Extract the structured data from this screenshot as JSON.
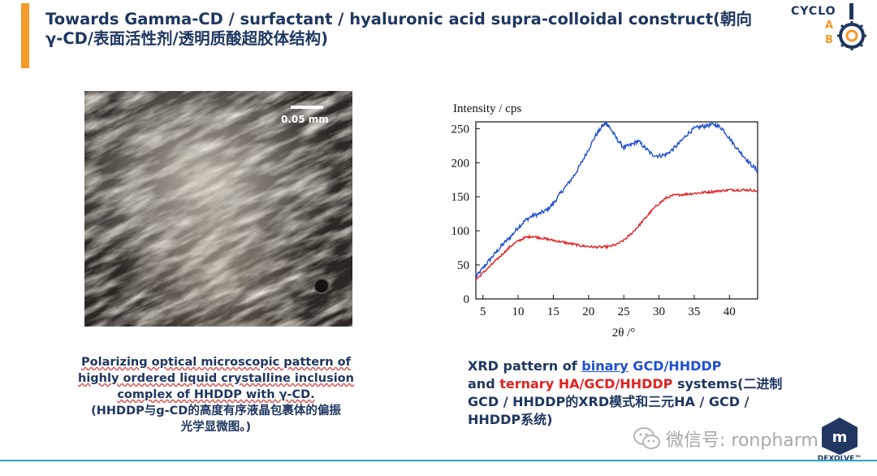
{
  "slide": {
    "title": "Towards Gamma-CD / surfactant / hyaluronic acid supra-colloidal construct(朝向γ-CD/表面活性剂/透明质酸超胶体结构)",
    "logo": {
      "text": "CYCLO",
      "letters": [
        "A",
        "B"
      ],
      "icon": "cyclodextrin-ring-icon"
    },
    "micrograph": {
      "scale_label": "0.05 mm"
    },
    "left_caption": {
      "line1": "Polarizing optical microscopic pattern of",
      "line2": "highly ordered liquid crystalline inclusion",
      "line3": "complex of HHDDP with γ-CD.",
      "line4": "(HHDDP与g-CD的高度有序液晶包裹体的偏振",
      "line5": "光学显微图。)"
    },
    "right_caption": {
      "p1": "XRD pattern of ",
      "binary": "binary",
      "p2": " GCD/HHDDP",
      "p3": "and ",
      "ternary": "ternary HA/GCD/HHDDP",
      "p4": " systems(二进制",
      "line3": "GCD / HHDDP的XRD模式和三元HA / GCD /",
      "line4": "HHDDP系统)"
    },
    "watermark": {
      "text": "微信号: ronpharm",
      "icon": "wechat-icon"
    },
    "dexolve": {
      "text": "DEXOLVE™"
    },
    "colors": {
      "navy": "#1f3761",
      "orange": "#f39a2a",
      "blue_series": "#1f4fd1",
      "red_series": "#e32222"
    }
  },
  "chart_data": {
    "type": "line",
    "title": "",
    "xlabel": "2θ /°",
    "ylabel": "Intensity / cps",
    "xlim": [
      4,
      44
    ],
    "ylim": [
      0,
      260
    ],
    "xticks": [
      5,
      10,
      15,
      20,
      25,
      30,
      35,
      40
    ],
    "yticks": [
      0,
      50,
      100,
      150,
      200,
      250
    ],
    "series": [
      {
        "color": "#1f4fd1",
        "x": [
          4,
          5,
          6,
          7,
          8,
          9,
          10,
          11,
          12,
          13,
          14,
          15,
          16,
          17,
          18,
          19,
          20,
          21,
          22,
          22.5,
          23,
          24,
          25,
          26,
          27,
          28,
          29,
          30,
          31,
          32,
          33,
          34,
          35,
          36,
          37,
          38,
          39,
          40,
          41,
          42,
          43,
          44
        ],
        "y": [
          32,
          45,
          58,
          70,
          82,
          92,
          105,
          115,
          122,
          125,
          130,
          140,
          155,
          168,
          182,
          200,
          220,
          240,
          254,
          258,
          252,
          235,
          222,
          226,
          232,
          222,
          212,
          210,
          212,
          220,
          230,
          242,
          250,
          253,
          255,
          256,
          250,
          236,
          222,
          210,
          198,
          188
        ]
      },
      {
        "color": "#e32222",
        "x": [
          4,
          5,
          6,
          7,
          8,
          9,
          10,
          11,
          12,
          13,
          14,
          15,
          16,
          17,
          18,
          19,
          20,
          21,
          22,
          23,
          24,
          25,
          26,
          27,
          28,
          29,
          30,
          31,
          32,
          33,
          34,
          35,
          36,
          37,
          38,
          39,
          40,
          41,
          42,
          43,
          44
        ],
        "y": [
          28,
          38,
          48,
          58,
          68,
          78,
          85,
          90,
          92,
          90,
          88,
          86,
          84,
          82,
          80,
          78,
          77,
          76,
          76,
          77,
          80,
          86,
          95,
          106,
          118,
          130,
          140,
          148,
          152,
          153,
          154,
          155,
          156,
          157,
          158,
          159,
          160,
          160,
          160,
          160,
          158
        ]
      }
    ]
  }
}
